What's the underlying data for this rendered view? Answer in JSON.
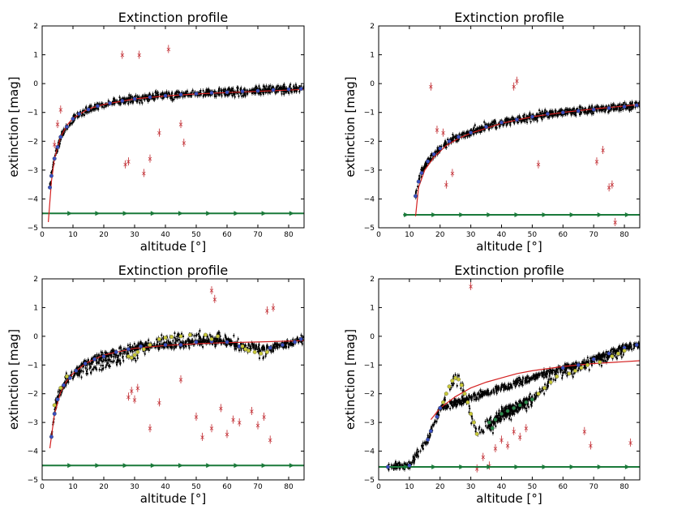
{
  "chart_data": [
    {
      "type": "scatter",
      "panel": "top-left",
      "title": "Extinction profile",
      "xlabel": "altitude [°]",
      "ylabel": "extinction [mag]",
      "xlim": [
        0,
        85
      ],
      "ylim": [
        -5,
        2
      ],
      "xticks": [
        "0",
        "10",
        "20",
        "30",
        "40",
        "50",
        "60",
        "70",
        "80"
      ],
      "yticks": [
        "−5",
        "−4",
        "−3",
        "−2",
        "−1",
        "0",
        "1",
        "2"
      ],
      "series": [
        {
          "name": "binned (blue)",
          "color": "#3a4fbf",
          "x": [
            2.5,
            3,
            4,
            5,
            6,
            8,
            10,
            12,
            15,
            18,
            22,
            26,
            30,
            35,
            40,
            45,
            50,
            55,
            60,
            65,
            70,
            75,
            80,
            84
          ],
          "y": [
            -3.6,
            -3.2,
            -2.6,
            -2.2,
            -1.85,
            -1.5,
            -1.22,
            -1.05,
            -0.9,
            -0.78,
            -0.68,
            -0.6,
            -0.53,
            -0.47,
            -0.42,
            -0.38,
            -0.35,
            -0.32,
            -0.3,
            -0.27,
            -0.25,
            -0.22,
            -0.2,
            -0.18
          ]
        },
        {
          "name": "fit",
          "color": "#d42020",
          "x": [
            2,
            3,
            4,
            6,
            8,
            10,
            15,
            20,
            30,
            40,
            50,
            60,
            70,
            85
          ],
          "y": [
            -4.8,
            -3.4,
            -2.6,
            -1.85,
            -1.45,
            -1.2,
            -0.88,
            -0.72,
            -0.53,
            -0.43,
            -0.36,
            -0.31,
            -0.27,
            -0.2
          ]
        },
        {
          "name": "outliers (red)",
          "color": "#c0272d",
          "x": [
            26,
            27,
            28,
            31.5,
            33,
            35,
            38,
            41,
            45,
            46,
            4,
            5,
            6
          ],
          "y": [
            1.0,
            -2.8,
            -2.7,
            1.0,
            -3.1,
            -2.6,
            -1.7,
            1.2,
            -1.4,
            -2.05,
            -2.1,
            -1.4,
            -0.9
          ]
        },
        {
          "name": "reference line",
          "color": "#1a7a3a",
          "x": [
            0,
            85
          ],
          "y": [
            -4.5,
            -4.5
          ]
        }
      ]
    },
    {
      "type": "scatter",
      "panel": "top-right",
      "title": "Extinction profile",
      "xlabel": "altitude [°]",
      "ylabel": "extinction [mag]",
      "xlim": [
        0,
        85
      ],
      "ylim": [
        -5,
        2
      ],
      "xticks": [
        "0",
        "10",
        "20",
        "30",
        "40",
        "50",
        "60",
        "70",
        "80"
      ],
      "yticks": [
        "−5",
        "−4",
        "−3",
        "−2",
        "−1",
        "0",
        "1",
        "2"
      ],
      "series": [
        {
          "name": "binned (blue)",
          "color": "#3a4fbf",
          "x": [
            12,
            13,
            14,
            16,
            18,
            20,
            23,
            26,
            30,
            35,
            40,
            45,
            50,
            55,
            60,
            65,
            70,
            75,
            80,
            84
          ],
          "y": [
            -3.9,
            -3.4,
            -3.1,
            -2.7,
            -2.45,
            -2.25,
            -2.0,
            -1.85,
            -1.7,
            -1.5,
            -1.35,
            -1.25,
            -1.15,
            -1.05,
            -1.0,
            -0.95,
            -0.9,
            -0.85,
            -0.8,
            -0.75
          ]
        },
        {
          "name": "fit",
          "color": "#d42020",
          "x": [
            12,
            13,
            15,
            18,
            22,
            26,
            30,
            40,
            50,
            60,
            70,
            80,
            85
          ],
          "y": [
            -4.6,
            -3.6,
            -3.0,
            -2.55,
            -2.15,
            -1.9,
            -1.72,
            -1.38,
            -1.15,
            -1.0,
            -0.88,
            -0.78,
            -0.72
          ]
        },
        {
          "name": "outliers (red)",
          "color": "#c0272d",
          "x": [
            17,
            19,
            21,
            22,
            24,
            44,
            45,
            52,
            71,
            73,
            75,
            76,
            77
          ],
          "y": [
            -0.1,
            -1.6,
            -1.7,
            -3.5,
            -3.1,
            -0.1,
            0.1,
            -2.8,
            -2.7,
            -2.3,
            -3.6,
            -3.5,
            -4.8
          ]
        },
        {
          "name": "reference line",
          "color": "#1a7a3a",
          "x": [
            8,
            85
          ],
          "y": [
            -4.55,
            -4.55
          ]
        }
      ]
    },
    {
      "type": "scatter",
      "panel": "bottom-left",
      "title": "Extinction profile",
      "xlabel": "altitude [°]",
      "ylabel": "extinction [mag]",
      "xlim": [
        0,
        85
      ],
      "ylim": [
        -5,
        2
      ],
      "xticks": [
        "0",
        "10",
        "20",
        "30",
        "40",
        "50",
        "60",
        "70",
        "80"
      ],
      "yticks": [
        "−5",
        "−4",
        "−3",
        "−2",
        "−1",
        "0",
        "1",
        "2"
      ],
      "series": [
        {
          "name": "binned (blue)",
          "color": "#3a4fbf",
          "x": [
            3,
            4,
            5,
            7,
            9,
            11,
            14,
            17,
            20,
            24,
            28,
            32,
            40,
            45,
            50,
            55,
            60,
            64,
            74,
            78,
            82,
            84
          ],
          "y": [
            -3.5,
            -2.7,
            -2.2,
            -1.7,
            -1.45,
            -1.2,
            -0.95,
            -0.8,
            -0.7,
            -0.55,
            -0.45,
            -0.35,
            -0.3,
            -0.3,
            -0.2,
            -0.18,
            -0.2,
            -0.35,
            -0.4,
            -0.3,
            -0.2,
            -0.1
          ]
        },
        {
          "name": "binned (yellow)",
          "color": "#c8c83a",
          "x": [
            4,
            6,
            8,
            28,
            29,
            30,
            31,
            33,
            35,
            38,
            40,
            42,
            45,
            48,
            53,
            55,
            57,
            65,
            66,
            67,
            69,
            71,
            73
          ],
          "y": [
            -2.4,
            -1.8,
            -1.4,
            -0.7,
            -0.75,
            -0.65,
            -0.55,
            -0.45,
            -0.3,
            -0.1,
            -0.05,
            -0.02,
            0.0,
            0.05,
            0.05,
            -0.1,
            0.0,
            -0.35,
            -0.45,
            -0.5,
            -0.55,
            -0.6,
            -0.55
          ]
        },
        {
          "name": "fit",
          "color": "#d42020",
          "x": [
            2.5,
            4,
            6,
            8,
            10,
            14,
            20,
            30,
            40,
            50,
            60,
            70,
            85
          ],
          "y": [
            -3.9,
            -2.7,
            -1.95,
            -1.55,
            -1.3,
            -0.95,
            -0.65,
            -0.42,
            -0.32,
            -0.26,
            -0.22,
            -0.2,
            -0.15
          ]
        },
        {
          "name": "outliers (red)",
          "color": "#c0272d",
          "x": [
            28,
            29,
            30,
            31,
            35,
            38,
            45,
            50,
            52,
            55,
            58,
            60,
            62,
            64,
            68,
            70,
            72,
            55,
            56,
            73,
            75,
            74
          ],
          "y": [
            -2.1,
            -1.9,
            -2.2,
            -1.8,
            -3.2,
            -2.3,
            -1.5,
            -2.8,
            -3.5,
            -3.2,
            -2.5,
            -3.4,
            -2.9,
            -3.0,
            -2.6,
            -3.1,
            -2.8,
            1.6,
            1.3,
            0.9,
            1.0,
            -3.6
          ]
        },
        {
          "name": "reference line",
          "color": "#1a7a3a",
          "x": [
            0,
            85
          ],
          "y": [
            -4.5,
            -4.5
          ]
        }
      ]
    },
    {
      "type": "scatter",
      "panel": "bottom-right",
      "title": "Extinction profile",
      "xlabel": "altitude [°]",
      "ylabel": "extinction [mag]",
      "xlim": [
        0,
        85
      ],
      "ylim": [
        -5,
        2
      ],
      "xticks": [
        "0",
        "10",
        "20",
        "30",
        "40",
        "50",
        "60",
        "70",
        "80"
      ],
      "yticks": [
        "−5",
        "−4",
        "−3",
        "−2",
        "−1",
        "0",
        "1",
        "2"
      ],
      "series": [
        {
          "name": "binned (blue)",
          "color": "#3a4fbf",
          "x": [
            3,
            10,
            16,
            17,
            19,
            20,
            60,
            65,
            70,
            75,
            80,
            84
          ],
          "y": [
            -4.55,
            -4.5,
            -3.6,
            -3.3,
            -2.8,
            -2.5,
            -1.1,
            -1.0,
            -0.8,
            -0.6,
            -0.4,
            -0.3
          ]
        },
        {
          "name": "binned (yellow)",
          "color": "#c8c83a",
          "x": [
            21,
            22,
            23,
            24,
            25,
            26,
            27,
            28,
            29,
            30,
            31,
            32,
            50,
            52,
            54,
            56,
            58,
            62,
            64,
            66,
            68,
            72,
            76,
            78,
            80
          ],
          "y": [
            -2.3,
            -2.0,
            -1.75,
            -1.55,
            -1.45,
            -1.5,
            -1.7,
            -2.0,
            -2.3,
            -2.7,
            -3.0,
            -3.4,
            -2.2,
            -2.0,
            -1.8,
            -1.6,
            -1.4,
            -1.3,
            -1.2,
            -1.1,
            -1.0,
            -0.9,
            -0.7,
            -0.6,
            -0.5
          ]
        },
        {
          "name": "binned (green)",
          "color": "#2a8a4a",
          "x": [
            36,
            37,
            38,
            40,
            42,
            44,
            46,
            48,
            50
          ],
          "y": [
            -3.0,
            -3.2,
            -2.9,
            -2.7,
            -2.6,
            -2.5,
            -2.4,
            -2.3,
            -2.2
          ]
        },
        {
          "name": "fit",
          "color": "#d42020",
          "x": [
            17,
            20,
            25,
            30,
            35,
            40,
            45,
            50,
            60,
            70,
            85
          ],
          "y": [
            -2.9,
            -2.5,
            -2.1,
            -1.8,
            -1.6,
            -1.45,
            -1.3,
            -1.2,
            -1.05,
            -0.95,
            -0.85
          ]
        },
        {
          "name": "outliers (red)",
          "color": "#c0272d",
          "x": [
            30,
            32,
            34,
            36,
            38,
            40,
            42,
            44,
            46,
            48,
            67,
            69,
            82
          ],
          "y": [
            1.75,
            -4.6,
            -4.2,
            -4.5,
            -3.9,
            -3.6,
            -3.8,
            -3.3,
            -3.5,
            -3.2,
            -3.3,
            -3.8,
            -3.7
          ]
        },
        {
          "name": "reference line",
          "color": "#1a7a3a",
          "x": [
            0,
            85
          ],
          "y": [
            -4.55,
            -4.55
          ]
        }
      ]
    }
  ]
}
